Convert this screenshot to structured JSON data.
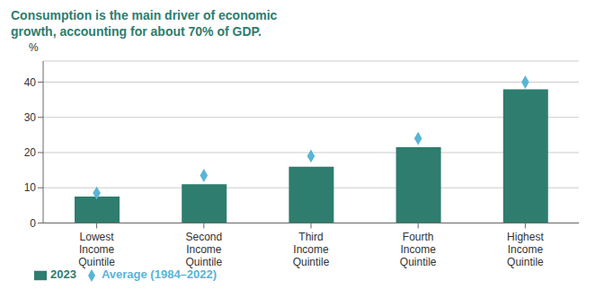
{
  "chart_data": {
    "type": "bar",
    "title": "Consumption is the main driver of economic\ngrowth, accounting for about 70% of GDP.",
    "title_color": "#2e7d6e",
    "ylabel": "%",
    "categories": [
      "Lowest\nIncome\nQuintile",
      "Second\nIncome\nQuintile",
      "Third\nIncome\nQuintile",
      "Fourth\nIncome\nQuintile",
      "Highest\nIncome\nQuintile"
    ],
    "series": [
      {
        "name": "2023",
        "type": "bar",
        "color": "#2e7d6e",
        "values": [
          7.5,
          11.0,
          16.0,
          21.5,
          38.0
        ]
      },
      {
        "name": "Average (1984–2022)",
        "type": "scatter",
        "marker": "diamond",
        "color": "#5ab4d6",
        "values": [
          8.5,
          13.5,
          19.0,
          24.0,
          40.0
        ]
      }
    ],
    "ylim": [
      0,
      46
    ],
    "yticks": [
      0,
      10,
      20,
      30,
      40
    ],
    "grid": true,
    "legend": "bottom"
  }
}
